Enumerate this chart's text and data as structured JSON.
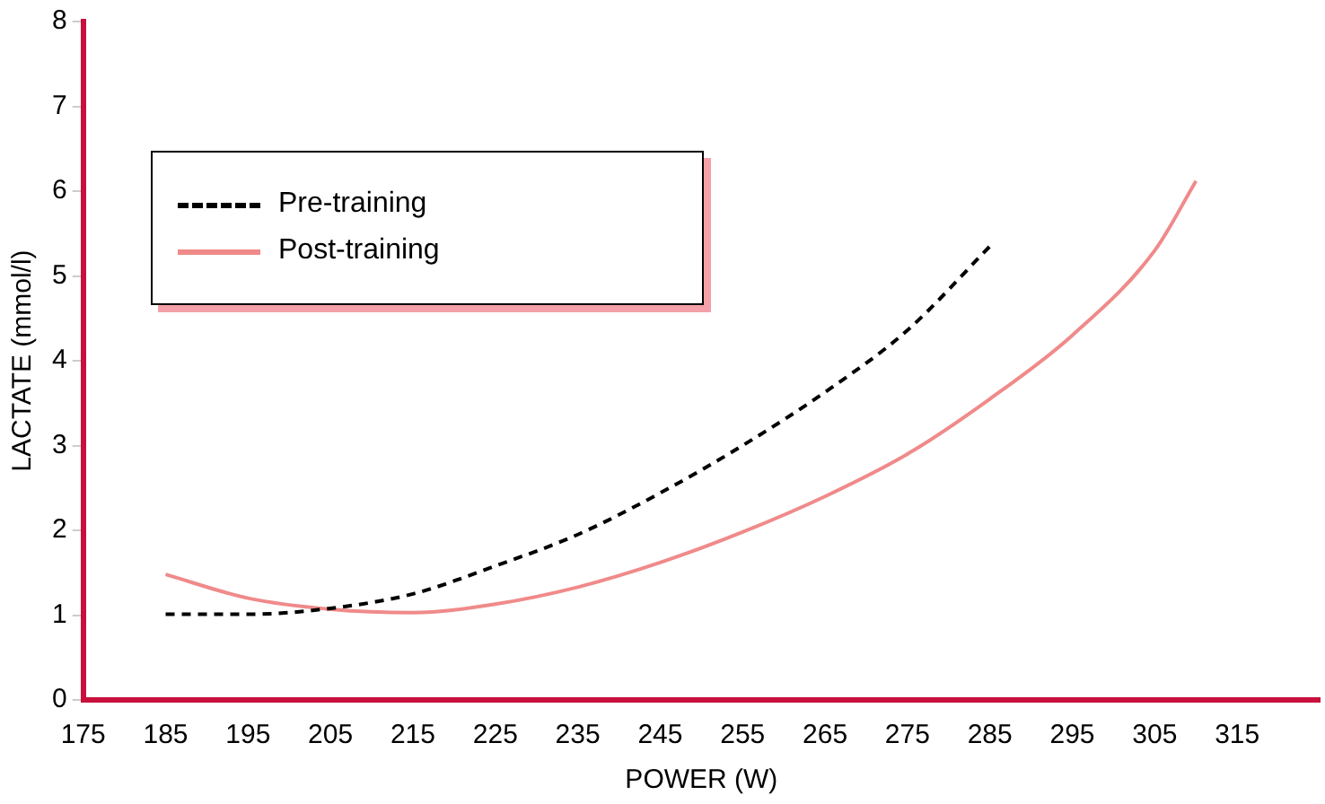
{
  "chart_data": {
    "type": "line",
    "xlabel": "POWER (W)",
    "ylabel": "LACTATE (mmol/l)",
    "xlim": [
      175,
      325
    ],
    "xticks": [
      175,
      185,
      195,
      205,
      215,
      225,
      235,
      245,
      255,
      265,
      275,
      285,
      295,
      305,
      315
    ],
    "ylim": [
      0,
      8
    ],
    "yticks": [
      0,
      1,
      2,
      3,
      4,
      5,
      6,
      7,
      8
    ],
    "grid": false,
    "legend": "top left",
    "marker": "none",
    "series": [
      {
        "name": "Pre-training",
        "color": "#000000",
        "line_style": "dashed",
        "x": [
          185,
          195,
          205,
          215,
          225,
          235,
          245,
          255,
          265,
          275,
          285
        ],
        "values": [
          1.01,
          1.01,
          1.08,
          1.25,
          1.58,
          1.95,
          2.44,
          3.0,
          3.63,
          4.36,
          5.35
        ]
      },
      {
        "name": "Post-training",
        "color": "#f08a8a",
        "line_style": "solid",
        "x": [
          185,
          195,
          205,
          215,
          225,
          235,
          245,
          255,
          265,
          275,
          285,
          295,
          305,
          310
        ],
        "values": [
          1.48,
          1.2,
          1.07,
          1.03,
          1.13,
          1.33,
          1.62,
          1.98,
          2.4,
          2.9,
          3.55,
          4.3,
          5.3,
          6.12
        ]
      }
    ]
  }
}
